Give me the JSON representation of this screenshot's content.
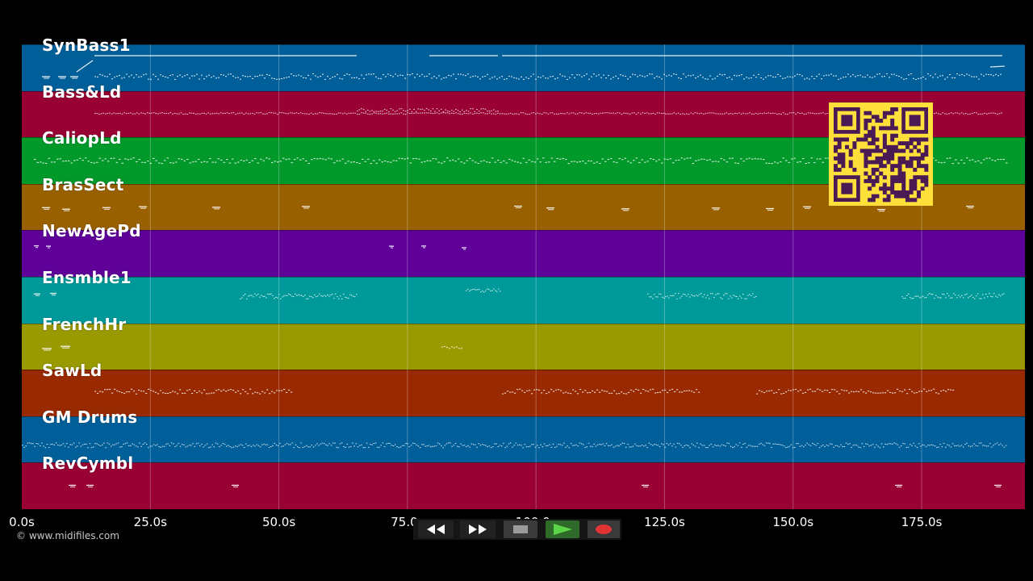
{
  "tracks": [
    {
      "name": "SynBass1",
      "color": "#005f99"
    },
    {
      "name": "Bass&Ld",
      "color": "#990033"
    },
    {
      "name": "CaliopLd",
      "color": "#00992a"
    },
    {
      "name": "BrasSect",
      "color": "#996000"
    },
    {
      "name": "NewAgePd",
      "color": "#5f0099"
    },
    {
      "name": "Ensmble1",
      "color": "#009999"
    },
    {
      "name": "FrenchHr",
      "color": "#999900"
    },
    {
      "name": "SawLd",
      "color": "#992900"
    },
    {
      "name": "GM Drums",
      "color": "#005f99"
    },
    {
      "name": "RevCymbl",
      "color": "#990033"
    }
  ],
  "timeline": {
    "ticks": [
      "0.0s",
      "25.0s",
      "50.0s",
      "75.0s",
      "100.0s",
      "125.0s",
      "150.0s",
      "175.0s"
    ],
    "tick_seconds": [
      0,
      25,
      50,
      75,
      100,
      125,
      150,
      175
    ],
    "max_seconds": 195
  },
  "copyright": "© www.midifiles.com",
  "transport": {
    "buttons": [
      {
        "id": "rewind",
        "icon": "rewind-icon"
      },
      {
        "id": "fast-forward",
        "icon": "fast-forward-icon"
      },
      {
        "id": "stop",
        "icon": "stop-icon"
      },
      {
        "id": "play",
        "icon": "play-icon"
      },
      {
        "id": "record",
        "icon": "record-icon"
      }
    ]
  },
  "colors": {
    "background": "#000000",
    "grid": "#ffffff",
    "qr_fg": "#4a1a55",
    "qr_bg": "#ffe03a",
    "play": "#5bd44a",
    "record": "#e03333",
    "stop": "#9a9a9a"
  }
}
